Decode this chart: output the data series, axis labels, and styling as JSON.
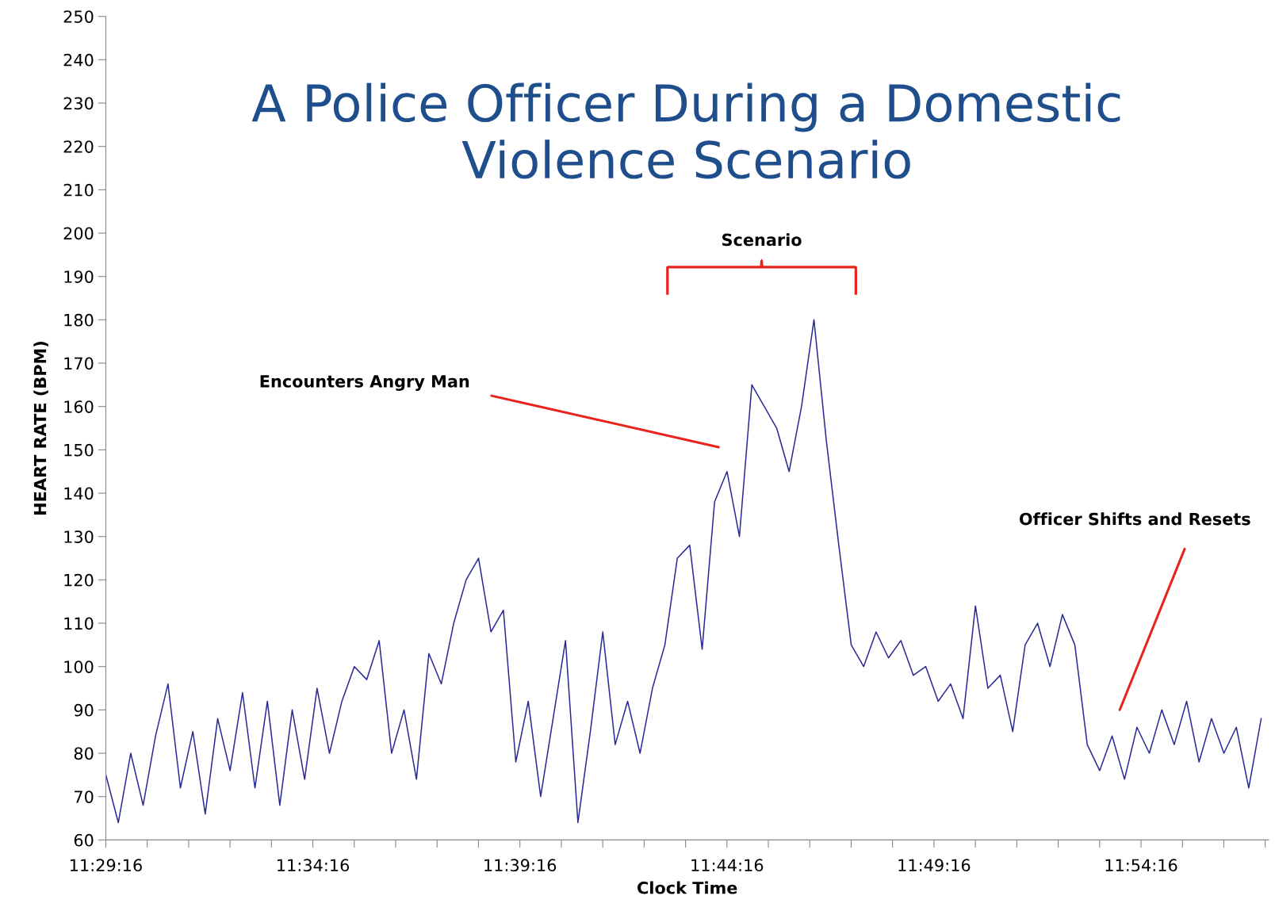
{
  "chart_data": {
    "type": "line",
    "title": "A Police Officer During a Domestic Violence Scenario",
    "xlabel": "Clock Time",
    "ylabel": "HEART RATE (BPM)",
    "x": [
      11.4878,
      11.4928,
      11.4978,
      11.5028,
      11.5078,
      11.5128,
      11.5178,
      11.5228,
      11.5278,
      11.5328,
      11.5378,
      11.5428,
      11.5478,
      11.5528,
      11.5578,
      11.5628,
      11.5678,
      11.5728,
      11.5778,
      11.5828,
      11.5878,
      11.5928,
      11.5978,
      11.6028,
      11.6078,
      11.6128,
      11.6178,
      11.6228,
      11.6278,
      11.6328,
      11.6378,
      11.6428,
      11.6478,
      11.6528,
      11.6578,
      11.6628,
      11.6678,
      11.6728,
      11.6778,
      11.6828,
      11.6878,
      11.6928,
      11.6978,
      11.7028,
      11.7078,
      11.7128,
      11.7178,
      11.7228,
      11.7278,
      11.7328,
      11.7378,
      11.7428,
      11.7478,
      11.7528,
      11.7578,
      11.7628,
      11.7678,
      11.7728,
      11.7778,
      11.7828,
      11.7878,
      11.7928,
      11.7978,
      11.8028,
      11.8078,
      11.8128,
      11.8178,
      11.8228,
      11.8278,
      11.8328,
      11.8378,
      11.8428,
      11.8478,
      11.8528,
      11.8578,
      11.8628,
      11.8678,
      11.8728,
      11.8778,
      11.8828,
      11.8878,
      11.8928,
      11.8978,
      11.9028,
      11.9078,
      11.9128,
      11.9178,
      11.9228,
      11.9278,
      11.9328,
      11.9378,
      11.9428,
      11.9478,
      11.9528
    ],
    "series": [
      {
        "color": "#2a2a96",
        "values": [
          75,
          64,
          80,
          68,
          84,
          96,
          72,
          85,
          66,
          88,
          76,
          94,
          72,
          92,
          68,
          90,
          74,
          95,
          80,
          92,
          100,
          97,
          106,
          80,
          90,
          74,
          103,
          96,
          110,
          120,
          125,
          108,
          113,
          78,
          92,
          70,
          88,
          106,
          64,
          85,
          108,
          82,
          92,
          80,
          95,
          105,
          125,
          128,
          104,
          138,
          145,
          130,
          165,
          160,
          155,
          145,
          160,
          180,
          152,
          128,
          105,
          100,
          108,
          102,
          106,
          98,
          100,
          92,
          96,
          88,
          114,
          95,
          98,
          85,
          105,
          110,
          100,
          112,
          105,
          82,
          76,
          84,
          74,
          86,
          80,
          90,
          82,
          92,
          78,
          88,
          80,
          86,
          72,
          88
        ]
      }
    ],
    "xlim": [
      11.48778,
      11.9558
    ],
    "xticks": [
      {
        "value": 11.48778,
        "label": "11:29:16"
      },
      {
        "value": 11.50444,
        "label": null
      },
      {
        "value": 11.52111,
        "label": null
      },
      {
        "value": 11.53778,
        "label": null
      },
      {
        "value": 11.55444,
        "label": null
      },
      {
        "value": 11.57111,
        "label": "11:34:16"
      },
      {
        "value": 11.58778,
        "label": null
      },
      {
        "value": 11.60444,
        "label": null
      },
      {
        "value": 11.62111,
        "label": null
      },
      {
        "value": 11.63778,
        "label": null
      },
      {
        "value": 11.65444,
        "label": "11:39:16"
      },
      {
        "value": 11.67111,
        "label": null
      },
      {
        "value": 11.68778,
        "label": null
      },
      {
        "value": 11.70444,
        "label": null
      },
      {
        "value": 11.72111,
        "label": null
      },
      {
        "value": 11.73778,
        "label": "11:44:16"
      },
      {
        "value": 11.75444,
        "label": null
      },
      {
        "value": 11.77111,
        "label": null
      },
      {
        "value": 11.78778,
        "label": null
      },
      {
        "value": 11.80444,
        "label": null
      },
      {
        "value": 11.82111,
        "label": "11:49:16"
      },
      {
        "value": 11.83778,
        "label": null
      },
      {
        "value": 11.85444,
        "label": null
      },
      {
        "value": 11.87111,
        "label": null
      },
      {
        "value": 11.88778,
        "label": null
      },
      {
        "value": 11.90444,
        "label": "11:54:16"
      },
      {
        "value": 11.92111,
        "label": null
      },
      {
        "value": 11.93778,
        "label": null
      },
      {
        "value": 11.95444,
        "label": null
      }
    ],
    "ylim": [
      60,
      250
    ],
    "yticks": [
      60,
      70,
      80,
      90,
      100,
      110,
      120,
      130,
      140,
      150,
      160,
      170,
      180,
      190,
      200,
      210,
      220,
      230,
      240,
      250
    ],
    "grid": false,
    "legend": false,
    "annotations": [
      "Scenario",
      "Encounters Angry Man",
      "Officer Shifts and Resets"
    ]
  }
}
